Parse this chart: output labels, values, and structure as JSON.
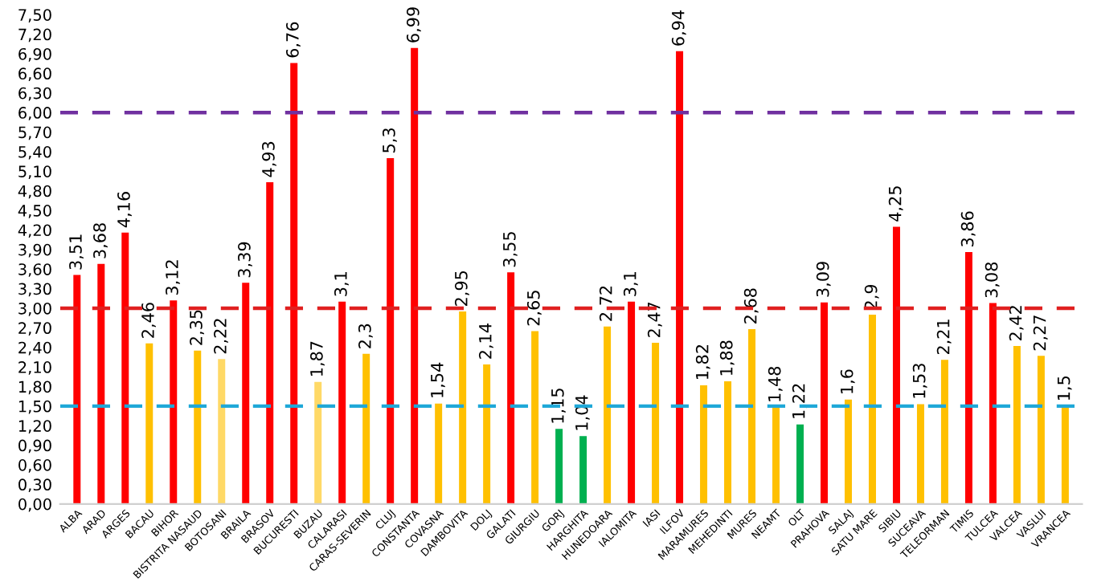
{
  "chart_data": {
    "type": "bar",
    "categories": [
      "ALBA",
      "ARAD",
      "ARGES",
      "BACAU",
      "BIHOR",
      "BISTRITA NASAUD",
      "BOTOSANI",
      "BRAILA",
      "BRASOV",
      "BUCURESTI",
      "BUZAU",
      "CALARASI",
      "CARAS-SEVERIN",
      "CLUJ",
      "CONSTANTA",
      "COVASNA",
      "DAMBOVITA",
      "DOLJ",
      "GALATI",
      "GIURGIU",
      "GORJ",
      "HARGHITA",
      "HUNEDOARA",
      "IALOMITA",
      "IASI",
      "ILFOV",
      "MARAMURES",
      "MEHEDINTI",
      "MURES",
      "NEAMT",
      "OLT",
      "PRAHOVA",
      "SALAJ",
      "SATU MARE",
      "SIBIU",
      "SUCEAVA",
      "TELEORMAN",
      "TIMIS",
      "TULCEA",
      "VALCEA",
      "VASLUI",
      "VRANCEA"
    ],
    "values": [
      3.51,
      3.68,
      4.16,
      2.46,
      3.12,
      2.35,
      2.22,
      3.39,
      4.93,
      6.76,
      1.87,
      3.1,
      2.3,
      5.3,
      6.99,
      1.54,
      2.95,
      2.14,
      3.55,
      2.65,
      1.15,
      1.04,
      2.72,
      3.1,
      2.47,
      6.94,
      1.82,
      1.88,
      2.68,
      1.48,
      1.22,
      3.09,
      1.6,
      2.9,
      4.25,
      1.53,
      2.21,
      3.86,
      3.08,
      2.42,
      2.27,
      1.5
    ],
    "value_labels": [
      "3,51",
      "3,68",
      "4,16",
      "2,46",
      "3,12",
      "2,35",
      "2,22",
      "3,39",
      "4,93",
      "6,76",
      "1,87",
      "3,1",
      "2,3",
      "5,3",
      "6,99",
      "1,54",
      "2,95",
      "2,14",
      "3,55",
      "2,65",
      "1,15",
      "1,04",
      "2,72",
      "3,1",
      "2,47",
      "6,94",
      "1,82",
      "1,88",
      "2,68",
      "1,48",
      "1,22",
      "3,09",
      "1,6",
      "2,9",
      "4,25",
      "1,53",
      "2,21",
      "3,86",
      "3,08",
      "2,42",
      "2,27",
      "1,5"
    ],
    "colors": [
      "#ff0000",
      "#ff0000",
      "#ff0000",
      "#ffc000",
      "#ff0000",
      "#ffc000",
      "#ffd966",
      "#ff0000",
      "#ff0000",
      "#ff0000",
      "#ffd966",
      "#ff0000",
      "#ffc000",
      "#ff0000",
      "#ff0000",
      "#ffc000",
      "#ffc000",
      "#ffc000",
      "#ff0000",
      "#ffc000",
      "#00b050",
      "#00b050",
      "#ffc000",
      "#ff0000",
      "#ffc000",
      "#ff0000",
      "#ffc000",
      "#ffc000",
      "#ffc000",
      "#ffc000",
      "#00b050",
      "#ff0000",
      "#ffc000",
      "#ffc000",
      "#ff0000",
      "#ffc000",
      "#ffc000",
      "#ff0000",
      "#ff0000",
      "#ffc000",
      "#ffc000",
      "#ffc000"
    ],
    "ylim": [
      0,
      7.5
    ],
    "yticks": [
      {
        "value": 0,
        "label": "0,00"
      },
      {
        "value": 0.3,
        "label": "0,30"
      },
      {
        "value": 0.6,
        "label": "0,60"
      },
      {
        "value": 0.9,
        "label": "0,90"
      },
      {
        "value": 1.2,
        "label": "1,20"
      },
      {
        "value": 1.5,
        "label": "1,50"
      },
      {
        "value": 1.8,
        "label": "1,80"
      },
      {
        "value": 2.1,
        "label": "2,10"
      },
      {
        "value": 2.4,
        "label": "2,40"
      },
      {
        "value": 2.7,
        "label": "2,70"
      },
      {
        "value": 3.0,
        "label": "3,00"
      },
      {
        "value": 3.3,
        "label": "3,30"
      },
      {
        "value": 3.6,
        "label": "3,60"
      },
      {
        "value": 3.9,
        "label": "3,90"
      },
      {
        "value": 4.2,
        "label": "4,20"
      },
      {
        "value": 4.5,
        "label": "4,50"
      },
      {
        "value": 4.8,
        "label": "4,80"
      },
      {
        "value": 5.1,
        "label": "5,10"
      },
      {
        "value": 5.4,
        "label": "5,40"
      },
      {
        "value": 5.7,
        "label": "5,70"
      },
      {
        "value": 6.0,
        "label": "6,00"
      },
      {
        "value": 6.3,
        "label": "6,30"
      },
      {
        "value": 6.6,
        "label": "6,60"
      },
      {
        "value": 6.9,
        "label": "6,90"
      },
      {
        "value": 7.2,
        "label": "7,20"
      },
      {
        "value": 7.5,
        "label": "7,50"
      }
    ],
    "ref_lines": [
      {
        "axis": "y",
        "value": 6.0,
        "color": "#7030a0",
        "line_style": "dashed"
      },
      {
        "axis": "y",
        "value": 3.0,
        "color": "#e02020",
        "line_style": "dashed"
      },
      {
        "axis": "y",
        "value": 1.5,
        "color": "#1fa8d8",
        "line_style": "dashed"
      }
    ],
    "grid": false,
    "legend": false
  }
}
